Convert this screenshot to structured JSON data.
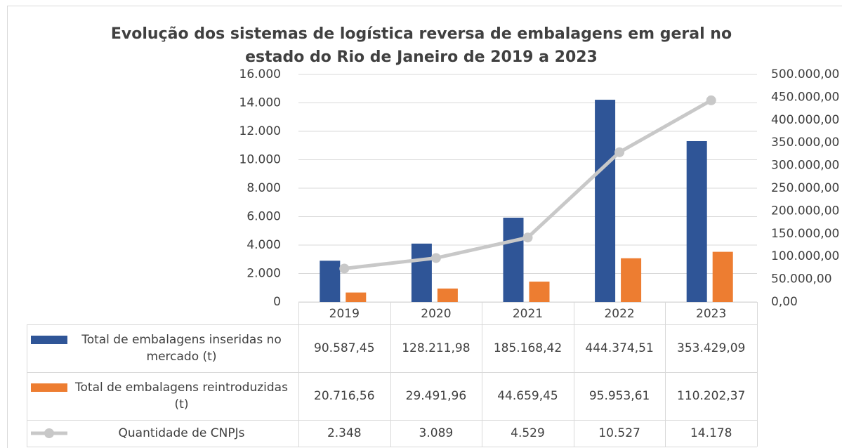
{
  "chart_data": {
    "type": "bar_line_table",
    "title": "Evolução dos sistemas de logística reversa de embalagens em geral no estado do Rio de Janeiro de 2019 a 2023",
    "categories": [
      "2019",
      "2020",
      "2021",
      "2022",
      "2023"
    ],
    "series": [
      {
        "name": "Total de embalagens inseridas no mercado (t)",
        "color": "#2f5597",
        "type": "bar",
        "axis": "y2",
        "values": [
          90587.45,
          128211.98,
          185168.42,
          444374.51,
          353429.09
        ],
        "value_labels": [
          "90.587,45",
          "128.211,98",
          "185.168,42",
          "444.374,51",
          "353.429,09"
        ]
      },
      {
        "name": "Total de embalagens reintroduzidas (t)",
        "color": "#ed7d31",
        "type": "bar",
        "axis": "y2",
        "values": [
          20716.56,
          29491.96,
          44659.45,
          95953.61,
          110202.37
        ],
        "value_labels": [
          "20.716,56",
          "29.491,96",
          "44.659,45",
          "95.953,61",
          "110.202,37"
        ]
      },
      {
        "name": "Quantidade de CNPJs",
        "color": "#c8c8c8",
        "type": "line",
        "axis": "y",
        "values": [
          2348,
          3089,
          4529,
          10527,
          14178
        ],
        "value_labels": [
          "2.348",
          "3.089",
          "4.529",
          "10.527",
          "14.178"
        ]
      }
    ],
    "ylim": [
      0,
      16000
    ],
    "yticks": [
      0,
      {
        "value": 2000,
        "label": "2.000"
      },
      {
        "value": 4000,
        "label": "4.000"
      },
      {
        "value": 6000,
        "label": "6.000"
      },
      {
        "value": 8000,
        "label": "8.000"
      },
      {
        "value": 10000,
        "label": "10.000"
      },
      {
        "value": 12000,
        "label": "12.000"
      },
      {
        "value": 14000,
        "label": "14.000"
      },
      {
        "value": 16000,
        "label": "16.000"
      }
    ],
    "y2lim": [
      0,
      500000
    ],
    "y2ticks": [
      {
        "value": 0,
        "label": "0,00"
      },
      {
        "value": 50000,
        "label": "50.000,00"
      },
      {
        "value": 100000,
        "label": "100.000,00"
      },
      {
        "value": 150000,
        "label": "150.000,00"
      },
      {
        "value": 200000,
        "label": "200.000,00"
      },
      {
        "value": 250000,
        "label": "250.000,00"
      },
      {
        "value": 300000,
        "label": "300.000,00"
      },
      {
        "value": 350000,
        "label": "350.000,00"
      },
      {
        "value": 400000,
        "label": "400.000,00"
      },
      {
        "value": 450000,
        "label": "450.000,00"
      },
      {
        "value": 500000,
        "label": "500.000,00"
      }
    ],
    "grid": true
  }
}
